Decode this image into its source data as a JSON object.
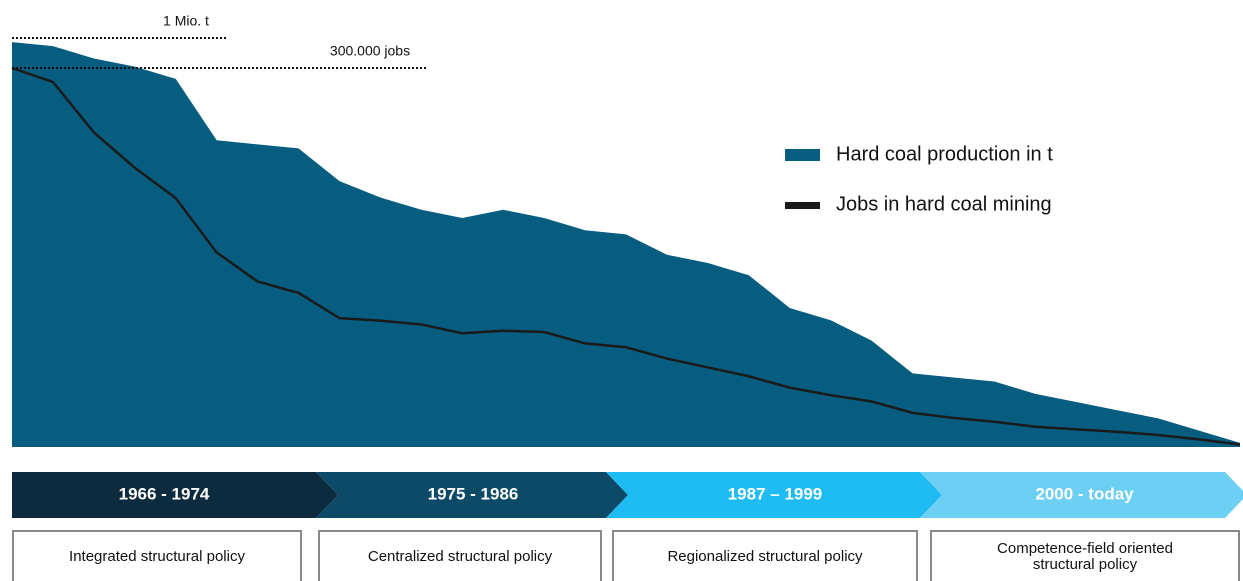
{
  "chart_data": {
    "type": "area",
    "series": [
      {
        "name": "Hard coal production in t",
        "color": "#065d80",
        "kind": "area",
        "axis": "y",
        "values": [
          0.99,
          0.98,
          0.95,
          0.93,
          0.9,
          0.75,
          0.74,
          0.73,
          0.65,
          0.61,
          0.58,
          0.56,
          0.58,
          0.56,
          0.53,
          0.52,
          0.47,
          0.45,
          0.42,
          0.34,
          0.31,
          0.26,
          0.18,
          0.17,
          0.16,
          0.13,
          0.11,
          0.09,
          0.07,
          0.04,
          0.01
        ]
      },
      {
        "name": "Jobs in hard coal mining",
        "color": "#1a1a1a",
        "kind": "line",
        "axis": "y2",
        "values": [
          300000,
          289000,
          249000,
          221000,
          197000,
          154000,
          131000,
          122000,
          102000,
          100000,
          97000,
          90000,
          92000,
          91000,
          82000,
          79000,
          70000,
          63000,
          56000,
          47000,
          41000,
          36000,
          27000,
          23000,
          20000,
          16000,
          14000,
          12000,
          9500,
          6000,
          2000
        ]
      }
    ],
    "ylim": [
      0,
      1
    ],
    "y2lim": [
      0,
      300000
    ],
    "annotations": [
      {
        "label": "1 Mio. t",
        "value": 1,
        "axis": "y"
      },
      {
        "label": "300.000 jobs",
        "value": 300000,
        "axis": "y2"
      }
    ],
    "phases": [
      {
        "label": "1966 - 1974",
        "color": "#0c2b3e",
        "policy": "Integrated structural policy"
      },
      {
        "label": "1975 - 1986",
        "color": "#0d4a68",
        "policy": "Centralized structural policy"
      },
      {
        "label": "1987 – 1999",
        "color": "#1fbcf4",
        "policy": "Regionalized structural policy"
      },
      {
        "label": "2000 - today",
        "color": "#6ecff4",
        "policy": "Competence-field oriented structural policy"
      }
    ]
  }
}
